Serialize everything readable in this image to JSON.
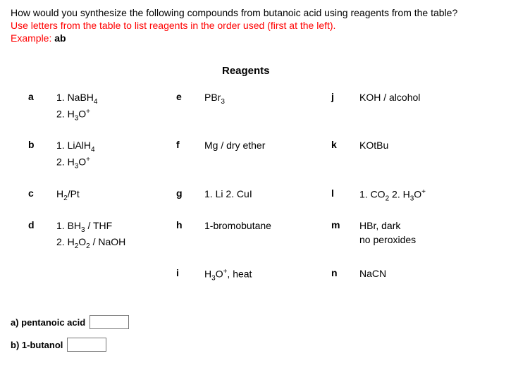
{
  "question": "How would you synthesize the following compounds from butanoic acid using reagents from the table?",
  "instruction": "Use letters from the table to list reagents in the order used (first at the left).",
  "example": {
    "label": "Example: ",
    "value": "ab"
  },
  "reagents_title": "Reagents",
  "reagents": {
    "a": {
      "label": "a",
      "line1": "1. NaBH",
      "sub1": "4",
      "line2": "2. H",
      "sub2": "3",
      "line2b": "O",
      "sup2": "+"
    },
    "b": {
      "label": "b",
      "line1": "1. LiAlH",
      "sub1": "4",
      "line2": "2. H",
      "sub2": "3",
      "line2b": "O",
      "sup2": "+"
    },
    "c": {
      "label": "c",
      "line1": "H",
      "sub1": "2",
      "line1b": "/Pt"
    },
    "d": {
      "label": "d",
      "line1": "1. BH",
      "sub1": "3",
      "line1b": " / THF",
      "line2": "2. H",
      "sub2": "2",
      "line2b": "O",
      "sub2b": "2",
      "line2c": " / NaOH"
    },
    "e": {
      "label": "e",
      "line1": "PBr",
      "sub1": "3"
    },
    "f": {
      "label": "f",
      "line1": "Mg / dry ether"
    },
    "g": {
      "label": "g",
      "line1": "1. Li   2. CuI"
    },
    "h": {
      "label": "h",
      "line1": "1-bromobutane"
    },
    "i": {
      "label": "i",
      "line1": "H",
      "sub1": "3",
      "line1b": "O",
      "sup1": "+",
      "line1c": ", heat"
    },
    "j": {
      "label": "j",
      "line1": "KOH / alcohol"
    },
    "k": {
      "label": "k",
      "line1": "KOtBu"
    },
    "l": {
      "label": "l",
      "line1": "1. CO",
      "sub1": "2",
      "line1b": "  2. H",
      "sub1b": "3",
      "line1c": "O",
      "sup1c": "+"
    },
    "m": {
      "label": "m",
      "line1": "HBr, dark",
      "line2": "no peroxides"
    },
    "n": {
      "label": "n",
      "line1": "NaCN"
    }
  },
  "answers": {
    "a": {
      "label": "a) pentanoic acid",
      "value": ""
    },
    "b": {
      "label": "b) 1-butanol",
      "value": ""
    }
  }
}
